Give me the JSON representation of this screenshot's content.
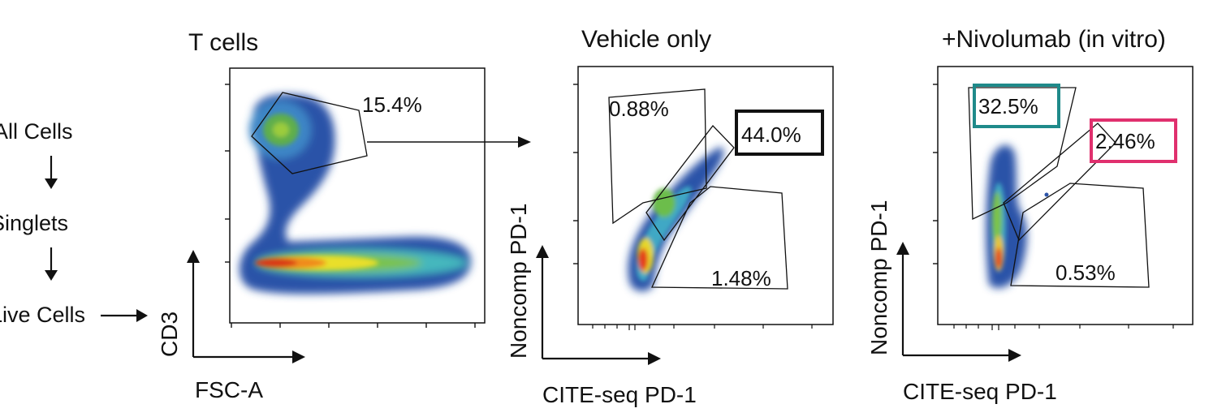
{
  "gating_steps": {
    "step1": "All Cells",
    "step2": "Singlets",
    "step3": "Live Cells"
  },
  "colors": {
    "teal_gate": "#1f8a8a",
    "magenta_gate": "#e0306e",
    "highlight_box": "#111111"
  },
  "chart_data": [
    {
      "type": "scatter",
      "title": "T cells",
      "xlabel": "FSC-A",
      "ylabel": "CD3",
      "gates": [
        {
          "label": "15.4%",
          "percent": 15.4,
          "highlight": "none"
        }
      ]
    },
    {
      "type": "scatter",
      "title": "Vehicle only",
      "xlabel": "CITE-seq PD-1",
      "ylabel": "Noncomp PD-1",
      "gates": [
        {
          "label": "0.88%",
          "percent": 0.88,
          "highlight": "none"
        },
        {
          "label": "44.0%",
          "percent": 44.0,
          "highlight": "black"
        },
        {
          "label": "1.48%",
          "percent": 1.48,
          "highlight": "none"
        }
      ]
    },
    {
      "type": "scatter",
      "title": "+Nivolumab (in vitro)",
      "xlabel": "CITE-seq PD-1",
      "ylabel": "Noncomp PD-1",
      "gates": [
        {
          "label": "32.5%",
          "percent": 32.5,
          "highlight": "teal"
        },
        {
          "label": "2.46%",
          "percent": 2.46,
          "highlight": "magenta"
        },
        {
          "label": "0.53%",
          "percent": 0.53,
          "highlight": "none"
        }
      ]
    }
  ]
}
